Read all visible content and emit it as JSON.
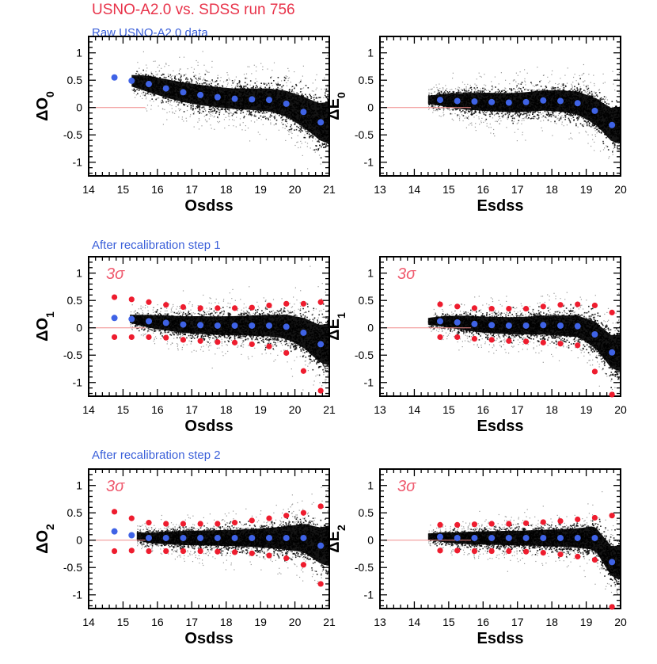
{
  "figure": {
    "title": "USNO-A2.0 vs. SDSS run 756",
    "colors": {
      "title": "#e8334a",
      "panel_title": "#3a5fd9",
      "mean_marker": "#3f63e6",
      "sigma_marker": "#ee1c2e",
      "sigma_label": "#ef5a6e",
      "zero_line": "#f08a8a",
      "scatter": "#000000"
    }
  },
  "rows": [
    {
      "title": "Raw USNO-A2.0 data",
      "show_sigma": false
    },
    {
      "title": "After recalibration step 1",
      "show_sigma": true
    },
    {
      "title": "After recalibration step 2",
      "show_sigma": true
    }
  ],
  "chart_data": [
    {
      "type": "scatter",
      "row": 0,
      "col": 0,
      "xlabel": "Osdss",
      "ylabel_base": "ΔO",
      "ylabel_sub": "0",
      "xlim": [
        14,
        21
      ],
      "ylim": [
        -1.25,
        1.3
      ],
      "xticks": [
        14,
        15,
        16,
        17,
        18,
        19,
        20,
        21
      ],
      "yticks": [
        -1,
        -0.5,
        0,
        0.5,
        1
      ],
      "ytick_labels": [
        "-1",
        "-0.5",
        "0",
        "0.5",
        "1"
      ],
      "sigma_label": "",
      "x": [
        14.75,
        15.25,
        15.75,
        16.25,
        16.75,
        17.25,
        17.75,
        18.25,
        18.75,
        19.25,
        19.75,
        20.25,
        20.75
      ],
      "mean": [
        0.55,
        0.49,
        0.43,
        0.35,
        0.28,
        0.23,
        0.19,
        0.16,
        0.15,
        0.14,
        0.07,
        -0.08,
        -0.27
      ],
      "upper": null,
      "lower": null,
      "cloud": {
        "x_start": 15.25,
        "x_end": 21,
        "spread": [
          0.17,
          0.24,
          0.27,
          0.29,
          0.3,
          0.3,
          0.3,
          0.31,
          0.33,
          0.36,
          0.42,
          0.5,
          0.62
        ]
      }
    },
    {
      "type": "scatter",
      "row": 0,
      "col": 1,
      "xlabel": "Esdss",
      "ylabel_base": "ΔE",
      "ylabel_sub": "0",
      "xlim": [
        13,
        20
      ],
      "ylim": [
        -1.25,
        1.3
      ],
      "xticks": [
        13,
        14,
        15,
        16,
        17,
        18,
        19,
        20
      ],
      "yticks": [
        -1,
        -0.5,
        0,
        0.5,
        1
      ],
      "ytick_labels": [
        "-1",
        "-0.5",
        "0",
        "0.5",
        "1"
      ],
      "sigma_label": "",
      "x": [
        14.75,
        15.25,
        15.75,
        16.25,
        16.75,
        17.25,
        17.75,
        18.25,
        18.75,
        19.25,
        19.75
      ],
      "mean": [
        0.14,
        0.12,
        0.11,
        0.1,
        0.09,
        0.1,
        0.13,
        0.12,
        0.08,
        -0.06,
        -0.32
      ],
      "upper": null,
      "lower": null,
      "cloud": {
        "x_start": 14.4,
        "x_end": 20,
        "spread": [
          0.12,
          0.2,
          0.25,
          0.27,
          0.28,
          0.29,
          0.3,
          0.32,
          0.35,
          0.42,
          0.55
        ]
      }
    },
    {
      "type": "scatter",
      "row": 1,
      "col": 0,
      "xlabel": "Osdss",
      "ylabel_base": "ΔO",
      "ylabel_sub": "1",
      "xlim": [
        14,
        21
      ],
      "ylim": [
        -1.25,
        1.3
      ],
      "xticks": [
        14,
        15,
        16,
        17,
        18,
        19,
        20,
        21
      ],
      "yticks": [
        -1,
        -0.5,
        0,
        0.5,
        1
      ],
      "ytick_labels": [
        "-1",
        "-0.5",
        "0",
        "0.5",
        "1"
      ],
      "sigma_label": "3σ",
      "x": [
        14.75,
        15.25,
        15.75,
        16.25,
        16.75,
        17.25,
        17.75,
        18.25,
        18.75,
        19.25,
        19.75,
        20.25,
        20.75
      ],
      "mean": [
        0.18,
        0.16,
        0.12,
        0.09,
        0.06,
        0.05,
        0.04,
        0.04,
        0.04,
        0.04,
        0.02,
        -0.09,
        -0.3
      ],
      "upper": [
        0.56,
        0.52,
        0.47,
        0.42,
        0.38,
        0.36,
        0.36,
        0.36,
        0.37,
        0.41,
        0.44,
        0.44,
        0.47
      ],
      "lower": [
        -0.17,
        -0.17,
        -0.17,
        -0.18,
        -0.22,
        -0.24,
        -0.26,
        -0.27,
        -0.3,
        -0.34,
        -0.46,
        -0.79,
        -1.15
      ],
      "cloud": {
        "x_start": 15.2,
        "x_end": 21,
        "spread": [
          0.12,
          0.18,
          0.22,
          0.24,
          0.26,
          0.27,
          0.28,
          0.29,
          0.31,
          0.34,
          0.4,
          0.5,
          0.62
        ]
      }
    },
    {
      "type": "scatter",
      "row": 1,
      "col": 1,
      "xlabel": "Esdss",
      "ylabel_base": "ΔE",
      "ylabel_sub": "1",
      "xlim": [
        13,
        20
      ],
      "ylim": [
        -1.25,
        1.3
      ],
      "xticks": [
        13,
        14,
        15,
        16,
        17,
        18,
        19,
        20
      ],
      "yticks": [
        -1,
        -0.5,
        0,
        0.5,
        1
      ],
      "ytick_labels": [
        "-1",
        "-0.5",
        "0",
        "0.5",
        "1"
      ],
      "sigma_label": "3σ",
      "x": [
        14.75,
        15.25,
        15.75,
        16.25,
        16.75,
        17.25,
        17.75,
        18.25,
        18.75,
        19.25,
        19.75
      ],
      "mean": [
        0.12,
        0.1,
        0.07,
        0.05,
        0.04,
        0.04,
        0.05,
        0.04,
        0.03,
        -0.12,
        -0.45
      ],
      "upper": [
        0.43,
        0.39,
        0.36,
        0.35,
        0.35,
        0.35,
        0.39,
        0.42,
        0.43,
        0.41,
        0.28
      ],
      "lower": [
        -0.17,
        -0.17,
        -0.2,
        -0.22,
        -0.24,
        -0.25,
        -0.27,
        -0.29,
        -0.32,
        -0.8,
        -1.22
      ],
      "cloud": {
        "x_start": 14.4,
        "x_end": 20,
        "spread": [
          0.1,
          0.17,
          0.22,
          0.24,
          0.25,
          0.26,
          0.28,
          0.3,
          0.33,
          0.42,
          0.55
        ]
      }
    },
    {
      "type": "scatter",
      "row": 2,
      "col": 0,
      "xlabel": "Osdss",
      "ylabel_base": "ΔO",
      "ylabel_sub": "2",
      "xlim": [
        14,
        21
      ],
      "ylim": [
        -1.25,
        1.3
      ],
      "xticks": [
        14,
        15,
        16,
        17,
        18,
        19,
        20,
        21
      ],
      "yticks": [
        -1,
        -0.5,
        0,
        0.5,
        1
      ],
      "ytick_labels": [
        "-1",
        "-0.5",
        "0",
        "0.5",
        "1"
      ],
      "sigma_label": "3σ",
      "x": [
        14.75,
        15.25,
        15.75,
        16.25,
        16.75,
        17.25,
        17.75,
        18.25,
        18.75,
        19.25,
        19.75,
        20.25,
        20.75
      ],
      "mean": [
        0.16,
        0.09,
        0.04,
        0.04,
        0.04,
        0.04,
        0.04,
        0.04,
        0.04,
        0.04,
        0.04,
        0.04,
        -0.1
      ],
      "upper": [
        0.52,
        0.4,
        0.32,
        0.3,
        0.3,
        0.3,
        0.3,
        0.32,
        0.36,
        0.4,
        0.45,
        0.5,
        0.62
      ],
      "lower": [
        -0.2,
        -0.19,
        -0.2,
        -0.2,
        -0.2,
        -0.2,
        -0.21,
        -0.22,
        -0.24,
        -0.28,
        -0.33,
        -0.45,
        -0.8
      ],
      "cloud": {
        "x_start": 15.4,
        "x_end": 21,
        "spread": [
          0.12,
          0.16,
          0.19,
          0.21,
          0.22,
          0.23,
          0.24,
          0.26,
          0.29,
          0.33,
          0.39,
          0.48,
          0.6
        ]
      }
    },
    {
      "type": "scatter",
      "row": 2,
      "col": 1,
      "xlabel": "Esdss",
      "ylabel_base": "ΔE",
      "ylabel_sub": "2",
      "xlim": [
        13,
        20
      ],
      "ylim": [
        -1.25,
        1.3
      ],
      "xticks": [
        13,
        14,
        15,
        16,
        17,
        18,
        19,
        20
      ],
      "yticks": [
        -1,
        -0.5,
        0,
        0.5,
        1
      ],
      "ytick_labels": [
        "-1",
        "-0.5",
        "0",
        "0.5",
        "1"
      ],
      "sigma_label": "3σ",
      "x": [
        14.75,
        15.25,
        15.75,
        16.25,
        16.75,
        17.25,
        17.75,
        18.25,
        18.75,
        19.25,
        19.75
      ],
      "mean": [
        0.06,
        0.04,
        0.04,
        0.04,
        0.04,
        0.04,
        0.04,
        0.04,
        0.04,
        0.04,
        -0.4
      ],
      "upper": [
        0.28,
        0.28,
        0.29,
        0.3,
        0.3,
        0.31,
        0.33,
        0.35,
        0.38,
        0.41,
        0.45
      ],
      "lower": [
        -0.19,
        -0.19,
        -0.2,
        -0.2,
        -0.2,
        -0.21,
        -0.23,
        -0.26,
        -0.3,
        -0.36,
        -1.22
      ],
      "cloud": {
        "x_start": 14.4,
        "x_end": 20,
        "spread": [
          0.1,
          0.15,
          0.18,
          0.2,
          0.21,
          0.22,
          0.24,
          0.26,
          0.3,
          0.38,
          0.5
        ]
      }
    }
  ]
}
